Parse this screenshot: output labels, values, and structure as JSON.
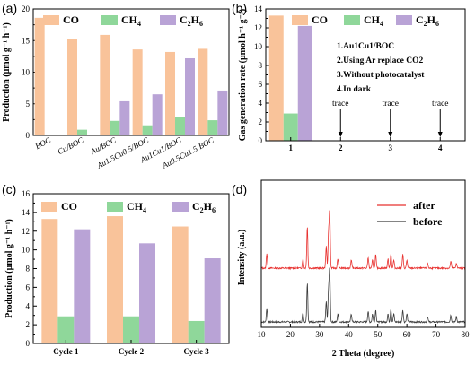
{
  "colors": {
    "CO": "#f9c39a",
    "CH4": "#8fd79a",
    "C2H6": "#b9a3d6",
    "after": "#e8312f",
    "before": "#3a3a3a"
  },
  "legend": {
    "co": "CO",
    "ch4": "CH",
    "ch4_sub": "4",
    "c2h6_a": "C",
    "c2h6_sub1": "2",
    "c2h6_b": "H",
    "c2h6_sub2": "6"
  },
  "panel_a": {
    "letter": "(a)",
    "ylabel": "Production (μmol g⁻¹ h⁻¹)",
    "category_labels": [
      "BOC",
      "Cu/BOC",
      "Au/BOC",
      "Au1.5Cu0.5/BOC",
      "Au1Cu1/BOC",
      "Au0.5Cu1.5/BOC"
    ]
  },
  "panel_b": {
    "letter": "(b)",
    "ylabel": "Gas generation rate (μmol h⁻¹ g⁻¹)",
    "notes": [
      "1.Au1Cu1/BOC",
      "2.Using Ar replace CO2",
      "3.Without photocatalyst",
      "4.In dark"
    ],
    "trace": "trace"
  },
  "panel_c": {
    "letter": "(c)",
    "ylabel": "Production (μmol g⁻¹ h⁻¹)"
  },
  "panel_d": {
    "letter": "(d)",
    "ylabel": "Intensity (a.u.)",
    "xlabel": "2 Theta (degree)",
    "legend_after": "after",
    "legend_before": "before"
  },
  "chart_data": [
    {
      "type": "bar",
      "panel": "a",
      "categories": [
        "BOC",
        "Cu/BOC",
        "Au/BOC",
        "Au1.5Cu0.5/BOC",
        "Au1Cu1/BOC",
        "Au0.5Cu1.5/BOC"
      ],
      "series": [
        {
          "name": "CO",
          "values": [
            18.6,
            15.3,
            15.9,
            13.6,
            13.2,
            13.7
          ]
        },
        {
          "name": "CH4",
          "values": [
            0,
            0.9,
            2.3,
            1.6,
            2.9,
            2.4
          ]
        },
        {
          "name": "C2H6",
          "values": [
            0,
            0,
            5.4,
            6.5,
            12.2,
            7.1
          ]
        }
      ],
      "ylim": [
        0,
        20
      ],
      "yticks": [
        0,
        5,
        10,
        15,
        20
      ]
    },
    {
      "type": "bar",
      "panel": "b",
      "categories": [
        "1",
        "2",
        "3",
        "4"
      ],
      "series": [
        {
          "name": "CO",
          "values": [
            13.3,
            0,
            0,
            0
          ]
        },
        {
          "name": "CH4",
          "values": [
            2.9,
            0,
            0,
            0
          ]
        },
        {
          "name": "C2H6",
          "values": [
            12.2,
            0,
            0,
            0
          ]
        }
      ],
      "annotations": [
        "trace",
        "trace",
        "trace"
      ],
      "ylim": [
        0,
        14
      ],
      "yticks": [
        0,
        2,
        4,
        6,
        8,
        10,
        12,
        14
      ]
    },
    {
      "type": "bar",
      "panel": "c",
      "categories": [
        "Cycle 1",
        "Cycle 2",
        "Cycle 3"
      ],
      "series": [
        {
          "name": "CO",
          "values": [
            13.3,
            13.6,
            12.5
          ]
        },
        {
          "name": "CH4",
          "values": [
            2.9,
            2.9,
            2.4
          ]
        },
        {
          "name": "C2H6",
          "values": [
            12.2,
            10.7,
            9.1
          ]
        }
      ],
      "ylim": [
        0,
        16
      ],
      "yticks": [
        0,
        2,
        4,
        6,
        8,
        10,
        12,
        14,
        16
      ]
    },
    {
      "type": "line",
      "panel": "d",
      "xlim": [
        10,
        80
      ],
      "xticks": [
        10,
        20,
        30,
        40,
        50,
        60,
        70,
        80
      ],
      "series": [
        {
          "name": "after",
          "baseline": 1.0,
          "peaks": [
            [
              11.9,
              0.55
            ],
            [
              24.3,
              0.35
            ],
            [
              25.8,
              1.55
            ],
            [
              32.3,
              0.8
            ],
            [
              33.1,
              1.25
            ],
            [
              33.5,
              2.1
            ],
            [
              36.3,
              0.35
            ],
            [
              40.9,
              0.3
            ],
            [
              46.7,
              0.4
            ],
            [
              48.2,
              0.3
            ],
            [
              49.3,
              0.5
            ],
            [
              53.5,
              0.35
            ],
            [
              54.5,
              0.55
            ],
            [
              55.5,
              0.3
            ],
            [
              58.6,
              0.5
            ],
            [
              60.0,
              0.3
            ],
            [
              67.1,
              0.2
            ],
            [
              75.1,
              0.25
            ],
            [
              77.0,
              0.2
            ]
          ]
        },
        {
          "name": "before",
          "baseline": 0.0,
          "peaks": [
            [
              11.9,
              0.5
            ],
            [
              24.3,
              0.35
            ],
            [
              25.8,
              1.45
            ],
            [
              32.3,
              0.75
            ],
            [
              33.1,
              1.15
            ],
            [
              33.5,
              1.95
            ],
            [
              36.3,
              0.3
            ],
            [
              40.9,
              0.3
            ],
            [
              46.7,
              0.4
            ],
            [
              48.2,
              0.3
            ],
            [
              49.3,
              0.45
            ],
            [
              53.5,
              0.3
            ],
            [
              54.5,
              0.5
            ],
            [
              55.5,
              0.3
            ],
            [
              58.6,
              0.45
            ],
            [
              60.0,
              0.3
            ],
            [
              67.1,
              0.2
            ],
            [
              75.1,
              0.25
            ],
            [
              77.0,
              0.2
            ]
          ]
        }
      ]
    }
  ]
}
